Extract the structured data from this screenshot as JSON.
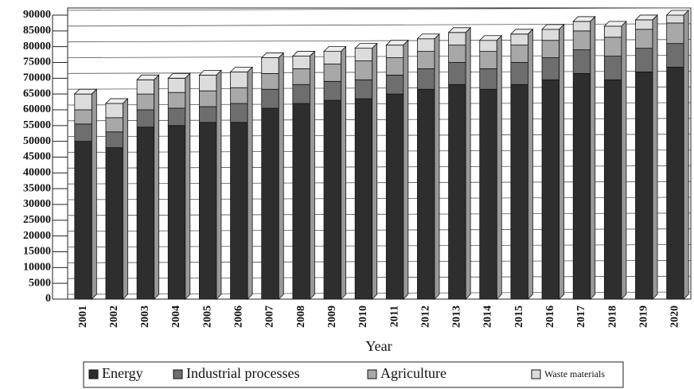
{
  "chart_data": {
    "type": "bar",
    "stacked": true,
    "x_label": "Year",
    "categories": [
      "2001",
      "2002",
      "2003",
      "2004",
      "2005",
      "2006",
      "2007",
      "2008",
      "2009",
      "2010",
      "2011",
      "2012",
      "2013",
      "2014",
      "2015",
      "2016",
      "2017",
      "2018",
      "2019",
      "2020"
    ],
    "series": [
      {
        "name": "Energy",
        "color": "#2e2e2e",
        "values": [
          50000,
          48000,
          54500,
          55000,
          56000,
          56000,
          60500,
          62000,
          63000,
          63500,
          65000,
          66500,
          68000,
          66500,
          68000,
          69500,
          71500,
          69500,
          72000,
          73500
        ]
      },
      {
        "name": "Industrial processes",
        "color": "#6e6e6e",
        "values": [
          5500,
          5000,
          5500,
          5500,
          5000,
          6000,
          6000,
          6000,
          6000,
          6000,
          6000,
          6500,
          7000,
          6500,
          7000,
          7000,
          7500,
          7500,
          7500,
          7500
        ]
      },
      {
        "name": "Agriculture",
        "color": "#a8a8a8",
        "values": [
          4500,
          4500,
          5000,
          5000,
          5000,
          5000,
          5000,
          5000,
          5500,
          6000,
          5500,
          5500,
          5500,
          5500,
          5500,
          5500,
          6000,
          6000,
          6000,
          6500
        ]
      },
      {
        "name": "Waste materials",
        "color": "#dcdcdc",
        "values": [
          5000,
          4500,
          4500,
          4500,
          5000,
          5000,
          5000,
          4000,
          4000,
          4000,
          4000,
          4000,
          4000,
          3500,
          3500,
          3500,
          3000,
          3500,
          3000,
          2500
        ]
      }
    ],
    "ylim": [
      0,
      90000
    ],
    "yticks": [
      0,
      5000,
      10000,
      15000,
      20000,
      25000,
      30000,
      35000,
      40000,
      45000,
      50000,
      55000,
      60000,
      65000,
      70000,
      75000,
      80000,
      85000,
      90000
    ],
    "grid": true
  }
}
